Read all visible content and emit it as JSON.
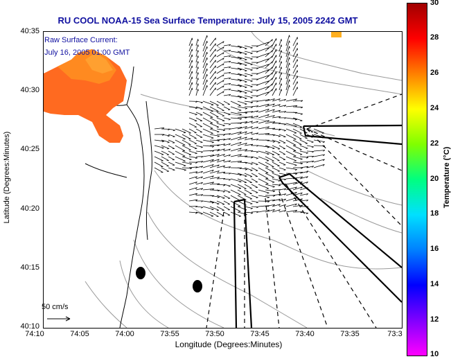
{
  "title": "RU COOL  NOAA-15  Sea Surface Temperature:  July 15, 2005 2242 GMT",
  "annotations": {
    "current_label": "Raw Surface Current:",
    "current_time": "July 16, 2005 01:00 GMT",
    "scale_label": "50 cm/s"
  },
  "axes": {
    "ylabel": "Latitude (Degrees:Minutes)",
    "xlabel": "Longitude (Degrees:Minutes)",
    "yticks": [
      "40:35",
      "40:30",
      "40:25",
      "40:20",
      "40:15",
      "40:10"
    ],
    "xticks": [
      "74:10",
      "74:05",
      "74:00",
      "73:55",
      "73:50",
      "73:45",
      "73:40",
      "73:35",
      "73:3"
    ]
  },
  "colorbar": {
    "title": "Temperature (°C)",
    "ticks": [
      "30",
      "28",
      "26",
      "24",
      "22",
      "20",
      "18",
      "16",
      "14",
      "12",
      "10"
    ],
    "range": [
      10,
      30
    ]
  },
  "colors": {
    "title": "#1010a0",
    "warm_sst": "#ff6a20",
    "land": "#ffffff",
    "bathymetry": "#999999"
  }
}
